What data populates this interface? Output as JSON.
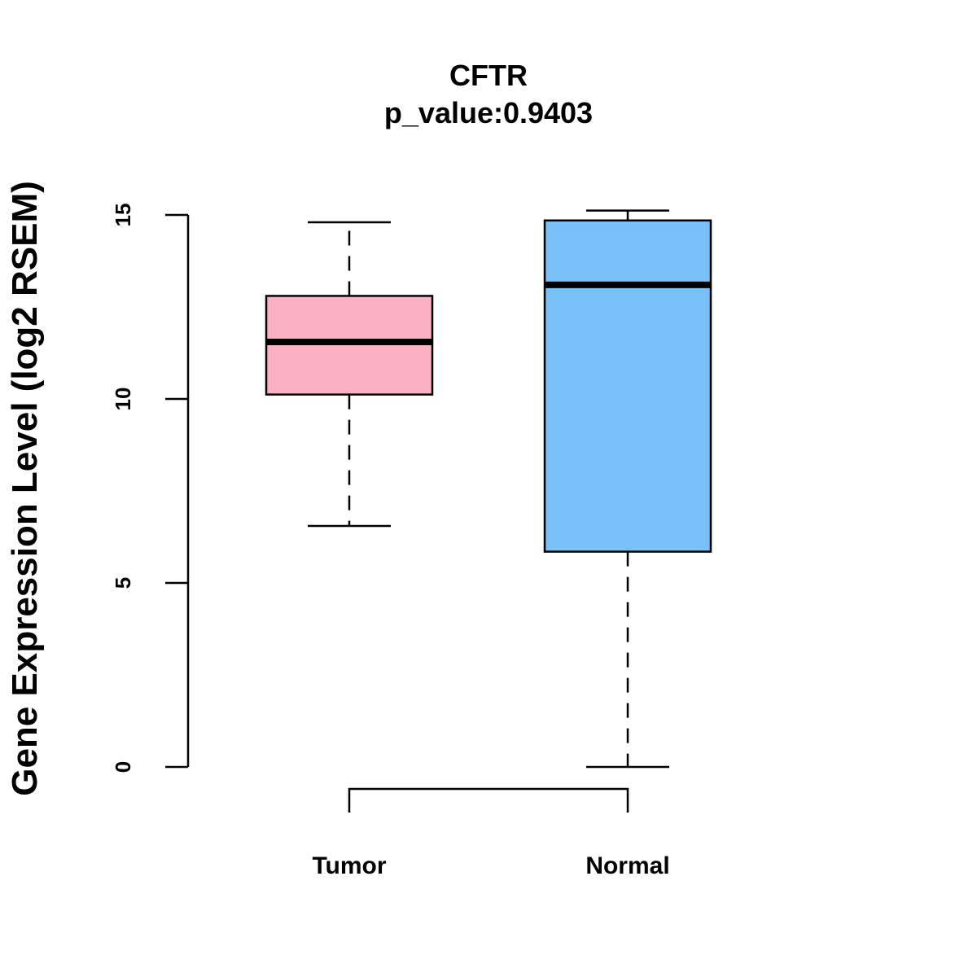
{
  "chart_data": {
    "type": "boxplot",
    "title": "CFTR",
    "subtitle": "p_value:0.9403",
    "ylabel": "Gene Expression Level (log2 RSEM)",
    "xlabel": "",
    "ylim": [
      0,
      15
    ],
    "yticks": [
      "0",
      "5",
      "10",
      "15"
    ],
    "yticks_values": [
      0,
      5,
      10,
      15
    ],
    "categories": [
      "Tumor",
      "Normal"
    ],
    "boxes": [
      {
        "category": "Tumor",
        "whisker_low": 6.55,
        "q1": 10.12,
        "median": 11.55,
        "q3": 12.8,
        "whisker_high": 14.8,
        "color": "#FBB1C3"
      },
      {
        "category": "Normal",
        "whisker_low": 0.0,
        "q1": 5.85,
        "median": 13.1,
        "q3": 14.85,
        "whisker_high": 15.12,
        "color": "#77C0F8"
      }
    ],
    "comparison_bracket": [
      "Tumor",
      "Normal"
    ],
    "grid": false,
    "legend": "none"
  }
}
